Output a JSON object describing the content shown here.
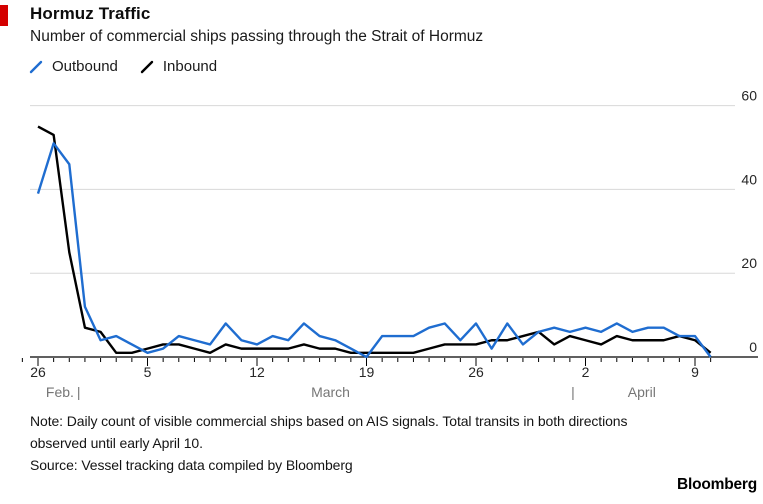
{
  "header": {
    "title": "Hormuz Traffic",
    "subtitle": "Number of commercial ships passing through the Strait of Hormuz"
  },
  "legend": [
    {
      "label": "Outbound",
      "color": "#1f6dd0"
    },
    {
      "label": "Inbound",
      "color": "#000000"
    }
  ],
  "chart_data": {
    "type": "line",
    "title": "Hormuz Traffic",
    "xlabel": "",
    "ylabel": "",
    "ylim": [
      0,
      60
    ],
    "yticks": [
      0,
      20,
      40,
      60
    ],
    "grid": "horizontal",
    "legend_position": "top-left",
    "x": [
      "Feb 26",
      "Feb 27",
      "Feb 28",
      "Mar 1",
      "Mar 2",
      "Mar 3",
      "Mar 4",
      "Mar 5",
      "Mar 6",
      "Mar 7",
      "Mar 8",
      "Mar 9",
      "Mar 10",
      "Mar 11",
      "Mar 12",
      "Mar 13",
      "Mar 14",
      "Mar 15",
      "Mar 16",
      "Mar 17",
      "Mar 18",
      "Mar 19",
      "Mar 20",
      "Mar 21",
      "Mar 22",
      "Mar 23",
      "Mar 24",
      "Mar 25",
      "Mar 26",
      "Mar 27",
      "Mar 28",
      "Mar 29",
      "Mar 30",
      "Mar 31",
      "Apr 1",
      "Apr 2",
      "Apr 3",
      "Apr 4",
      "Apr 5",
      "Apr 6",
      "Apr 7",
      "Apr 8",
      "Apr 9",
      "Apr 10"
    ],
    "series": [
      {
        "name": "Outbound",
        "color": "#1f6dd0",
        "values": [
          39,
          51,
          46,
          12,
          4,
          5,
          3,
          1,
          2,
          5,
          4,
          3,
          8,
          4,
          3,
          5,
          4,
          8,
          5,
          4,
          2,
          0,
          5,
          5,
          5,
          7,
          8,
          4,
          8,
          2,
          8,
          3,
          6,
          7,
          6,
          7,
          6,
          8,
          6,
          7,
          7,
          5,
          5,
          0
        ]
      },
      {
        "name": "Inbound",
        "color": "#000000",
        "values": [
          55,
          53,
          25,
          7,
          6,
          1,
          1,
          2,
          3,
          3,
          2,
          1,
          3,
          2,
          2,
          2,
          2,
          3,
          2,
          2,
          1,
          1,
          1,
          1,
          1,
          2,
          3,
          3,
          3,
          4,
          4,
          5,
          6,
          3,
          5,
          4,
          3,
          5,
          4,
          4,
          4,
          5,
          4,
          1
        ]
      }
    ],
    "xticks": [
      {
        "label": "26",
        "day": 0
      },
      {
        "label": "5",
        "day": 7
      },
      {
        "label": "12",
        "day": 14
      },
      {
        "label": "19",
        "day": 21
      },
      {
        "label": "26",
        "day": 28
      },
      {
        "label": "2",
        "day": 35
      },
      {
        "label": "9",
        "day": 42
      }
    ],
    "month_labels": [
      {
        "text": "Feb.",
        "day": 1.4
      },
      {
        "text": "|",
        "day": 2.6
      },
      {
        "text": "March",
        "day": 18.7
      },
      {
        "text": "|",
        "day": 34.2
      },
      {
        "text": "April",
        "day": 38.6
      }
    ]
  },
  "footer": {
    "note_lines": [
      "Note: Daily count of visible commercial ships based on AIS signals. Total transits in both directions",
      "observed until early April 10."
    ],
    "source": "Source: Vessel tracking data compiled by Bloomberg",
    "brand": "Bloomberg"
  },
  "colors": {
    "accent": "#d40000",
    "grid": "#d8d8d8",
    "axis": "#000000",
    "tick_label": "#262626",
    "month_label": "#767676"
  }
}
